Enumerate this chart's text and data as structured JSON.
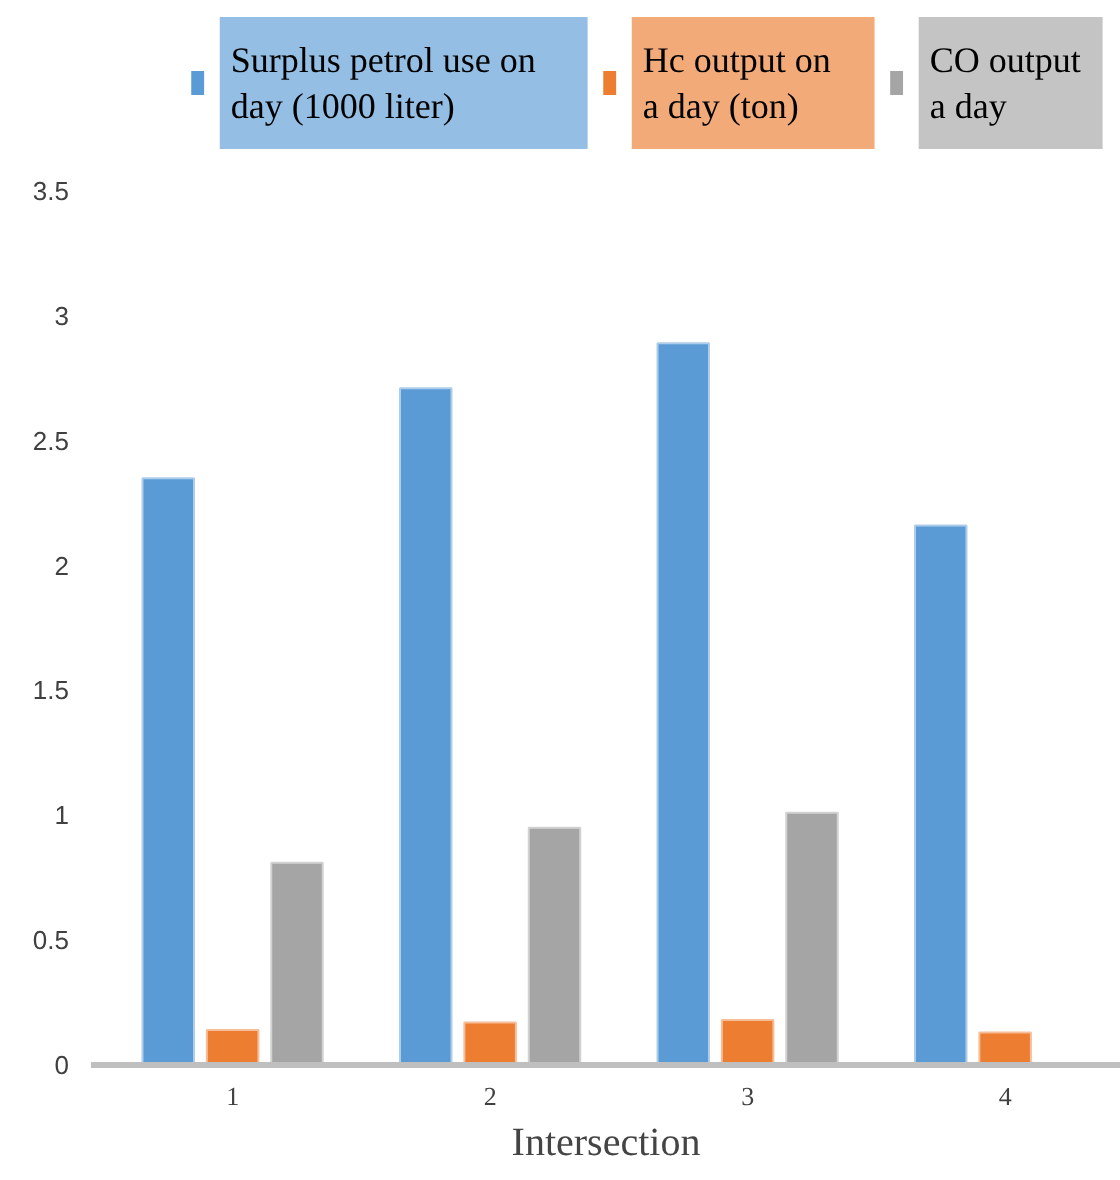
{
  "chart_data": {
    "type": "bar",
    "xlabel": "Intersection",
    "categories": [
      "1",
      "2",
      "3",
      "4"
    ],
    "series": [
      {
        "name": "Surplus petrol use on day (1000 liter)",
        "color": "#5b9bd5",
        "values": [
          2.35,
          2.71,
          2.89,
          2.16
        ]
      },
      {
        "name": "Hc output on a day (ton)",
        "color": "#ed7d31",
        "values": [
          0.14,
          0.17,
          0.18,
          0.13
        ]
      },
      {
        "name": "CO output a day",
        "color": "#a5a5a5",
        "values": [
          0.81,
          0.95,
          1.01,
          null
        ]
      }
    ],
    "ylim": [
      0,
      3.5
    ],
    "yticks": [
      0,
      0.5,
      1,
      1.5,
      2,
      2.5,
      3,
      3.5
    ],
    "grid": false,
    "legend": "top"
  }
}
